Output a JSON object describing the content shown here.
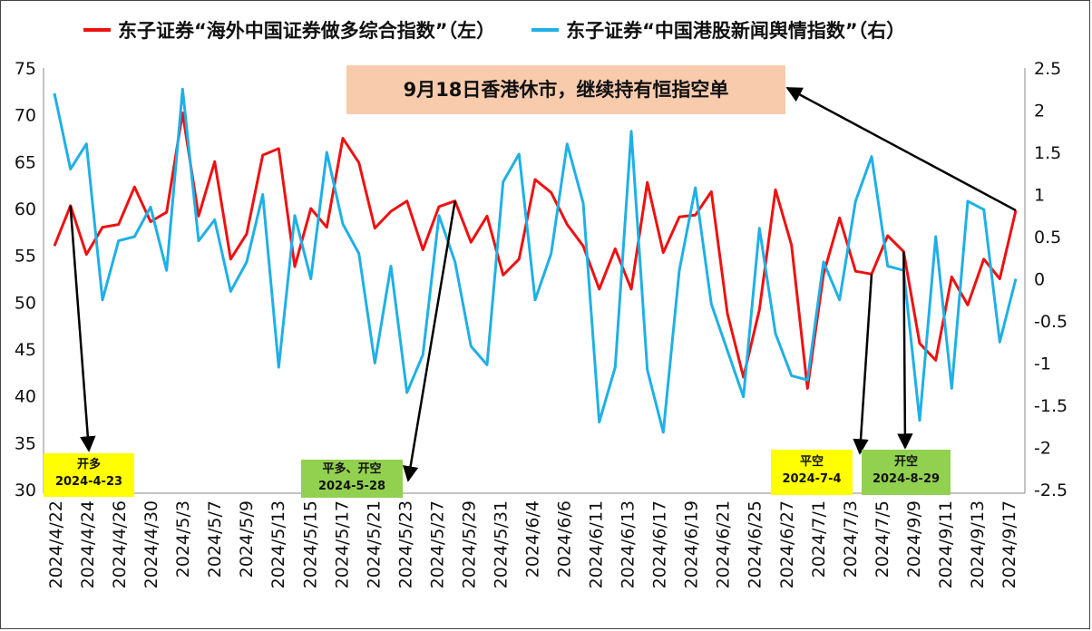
{
  "chart_data": {
    "type": "line",
    "legend_position": "top",
    "grid": false,
    "series": [
      {
        "name": "东子证券“海外中国证券做多综合指数”（左）",
        "axis": "left",
        "color": "#ee1111",
        "values": [
          56.0,
          60.3,
          55.1,
          58.0,
          58.3,
          62.3,
          58.6,
          59.6,
          70.2,
          59.2,
          65.0,
          54.6,
          57.3,
          65.7,
          66.4,
          53.8,
          60.0,
          58.0,
          67.5,
          64.9,
          57.9,
          59.7,
          60.8,
          55.6,
          60.2,
          60.8,
          56.4,
          59.2,
          52.9,
          54.6,
          63.1,
          61.7,
          58.3,
          56.0,
          51.4,
          55.7,
          51.4,
          62.8,
          55.3,
          59.1,
          59.3,
          61.8,
          48.8,
          42.0,
          49.2,
          62.0,
          56.1,
          40.8,
          53.0,
          59.0,
          53.3,
          53.0,
          57.1,
          55.4,
          45.6,
          43.8,
          52.7,
          49.7,
          54.6,
          52.5,
          59.8
        ]
      },
      {
        "name": "东子证券“中国港股新闻舆情指数”（右）",
        "axis": "right",
        "color": "#1fb0e6",
        "values": [
          2.2,
          1.3,
          1.6,
          -0.25,
          0.45,
          0.5,
          0.85,
          0.1,
          2.25,
          0.45,
          0.7,
          -0.15,
          0.2,
          1.0,
          -1.05,
          0.75,
          0.0,
          1.5,
          0.65,
          0.3,
          -1.0,
          0.15,
          -1.35,
          -0.9,
          0.75,
          0.2,
          -0.8,
          -1.02,
          1.15,
          1.48,
          -0.25,
          0.3,
          1.6,
          0.9,
          -1.7,
          -1.05,
          1.75,
          -1.08,
          -1.82,
          0.1,
          1.08,
          -0.3,
          -0.85,
          -1.4,
          0.6,
          -0.65,
          -1.15,
          -1.2,
          0.2,
          -0.25,
          0.92,
          1.45,
          0.15,
          0.1,
          -1.68,
          0.5,
          -1.3,
          0.92,
          0.82,
          -0.75,
          0.0
        ]
      }
    ],
    "left_axis": {
      "range": [
        30,
        75
      ],
      "ticks": [
        "30",
        "35",
        "40",
        "45",
        "50",
        "55",
        "60",
        "65",
        "70",
        "75"
      ]
    },
    "right_axis": {
      "range": [
        -2.5,
        2.5
      ],
      "ticks": [
        "-2.5",
        "-2",
        "-1.5",
        "-1",
        "-0.5",
        "0",
        "0.5",
        "1",
        "1.5",
        "2",
        "2.5"
      ]
    },
    "x_tick_labels": [
      "2024/4/22",
      "2024/4/24",
      "2024/4/26",
      "2024/4/30",
      "2024/5/3",
      "2024/5/7",
      "2024/5/9",
      "2024/5/13",
      "2024/5/15",
      "2024/5/17",
      "2024/5/21",
      "2024/5/23",
      "2024/5/27",
      "2024/5/29",
      "2024/5/31",
      "2024/6/4",
      "2024/6/6",
      "2024/6/11",
      "2024/6/13",
      "2024/6/17",
      "2024/6/19",
      "2024/6/21",
      "2024/6/25",
      "2024/6/27",
      "2024/7/1",
      "2024/7/3",
      "2024/7/5",
      "2024/9/9",
      "2024/9/11",
      "2024/9/13",
      "2024/9/17"
    ],
    "annotations": {
      "top_note": "9月18日香港休市，继续持有恒指空单",
      "note_1": {
        "line1": "开多",
        "line2": "2024-4-23",
        "color": "#ffff00",
        "series_index": 0,
        "point_index": 1
      },
      "note_2": {
        "line1": "平多、开空",
        "line2": "2024-5-28",
        "color": "#92d050",
        "series_index": 0,
        "point_index": 25
      },
      "note_3": {
        "line1": "平空",
        "line2": "2024-7-4",
        "color": "#ffff00",
        "series_index": 0,
        "point_index": 51
      },
      "note_4": {
        "line1": "开空",
        "line2": "2024-8-29",
        "color": "#92d050",
        "series_index": 0,
        "point_index": 53
      }
    },
    "colors": {
      "top_note_bg": "#f8cbad",
      "arrow": "#000000"
    }
  }
}
